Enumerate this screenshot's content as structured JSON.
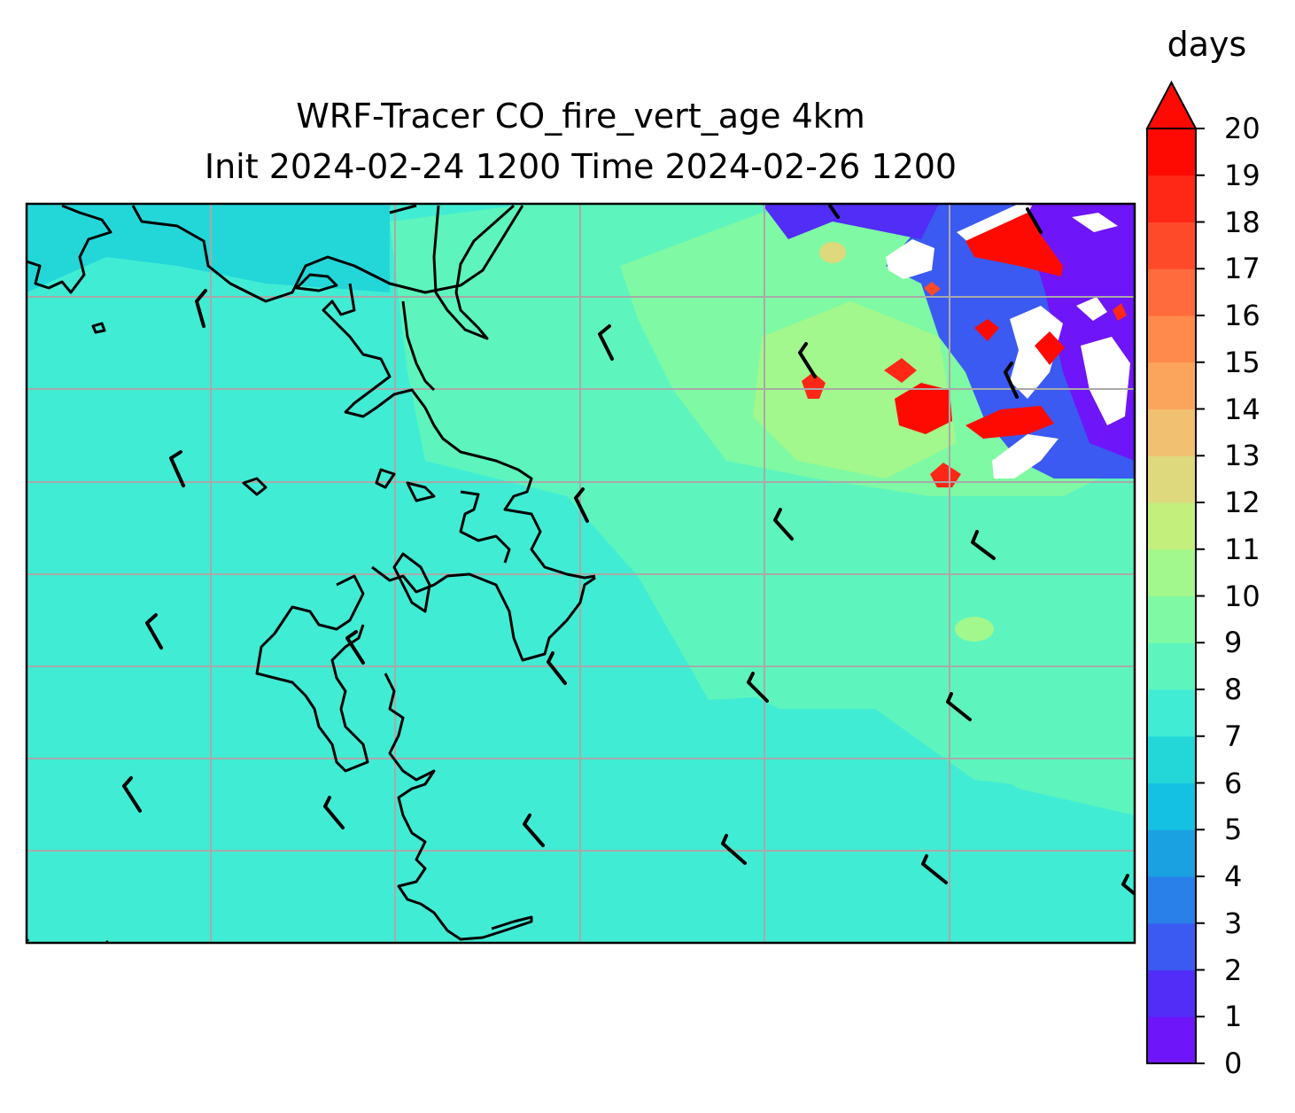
{
  "title_line1": "WRF-Tracer CO_fire_vert_age 4km",
  "title_line2": "Init 2024-02-24 1200 Time 2024-02-26 1200",
  "colorbar": {
    "units": "days",
    "min": 0,
    "max": 20,
    "extend": "max",
    "ticks": [
      "0",
      "1",
      "2",
      "3",
      "4",
      "5",
      "6",
      "7",
      "8",
      "9",
      "10",
      "11",
      "12",
      "13",
      "14",
      "15",
      "16",
      "17",
      "18",
      "19",
      "20"
    ],
    "colors": [
      "#6e15f9",
      "#512df7",
      "#3b5af1",
      "#2a80e9",
      "#1aa1e2",
      "#14c1e3",
      "#23d7d9",
      "#41ecd4",
      "#5df5bd",
      "#7ff9a3",
      "#a2f88c",
      "#c3ef7d",
      "#ddd97c",
      "#f1c070",
      "#fba55c",
      "#ff8a4b",
      "#ff6b3c",
      "#ff4a2a",
      "#ff2716",
      "#ff0a02"
    ]
  },
  "chart_data": {
    "type": "heatmap",
    "description_fields": {
      "field": "CO_fire_vert_age",
      "units": "days"
    },
    "value_regions": [
      {
        "region": "west and south of domain",
        "value_days": 7.5
      },
      {
        "region": "central band",
        "value_days": 8.5
      },
      {
        "region": "northeast interior",
        "value_days": 10.5
      },
      {
        "region": "northeast fire plumes",
        "value_days": 20
      },
      {
        "region": "far northeast edge",
        "value_days": 1
      }
    ],
    "gridlines": true
  }
}
